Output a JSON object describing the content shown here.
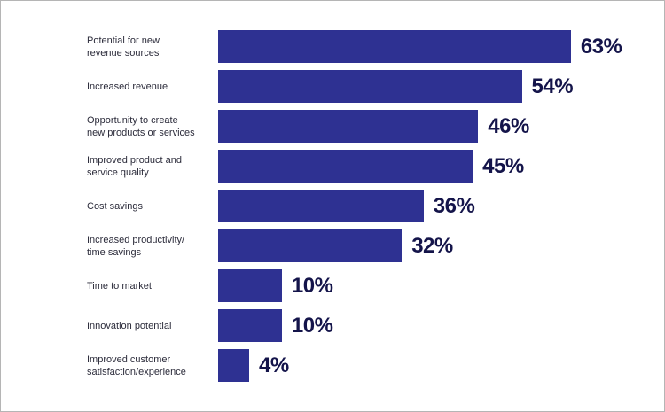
{
  "chart_data": {
    "type": "bar",
    "orientation": "horizontal",
    "categories": [
      "Potential for new\nrevenue sources",
      "Increased revenue",
      "Opportunity to create\nnew products or services",
      "Improved product and\nservice quality",
      "Cost savings",
      "Increased productivity/\ntime savings",
      "Time to market",
      "Innovation potential",
      "Improved customer\nsatisfaction/experience"
    ],
    "values": [
      63,
      54,
      46,
      45,
      36,
      32,
      10,
      10,
      4
    ],
    "value_labels": [
      "63%",
      "54%",
      "46%",
      "45%",
      "36%",
      "32%",
      "10%",
      "10%",
      "4%"
    ],
    "unit": "%",
    "xlim": [
      0,
      63
    ],
    "grid": false,
    "bar_color": "#2e3192",
    "label_color": "#14144a"
  }
}
